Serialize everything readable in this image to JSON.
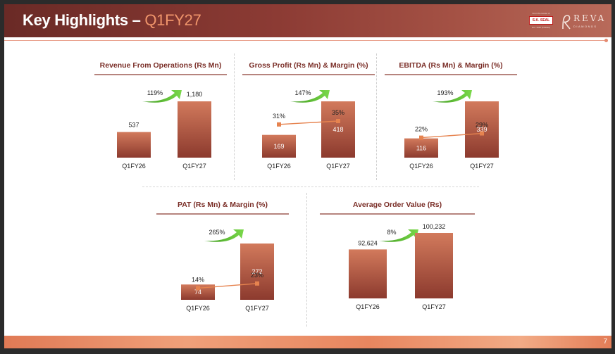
{
  "header": {
    "title_main": "Key Highlights – ",
    "title_accent": "Q1FY27",
    "logo_sk": {
      "top_text": "From the House of",
      "brand": "S.K. SEAL",
      "tagline": "Est. 1940 (Kolkata)"
    },
    "logo_reva": {
      "name": "REVA",
      "sub": "DIAMONDS"
    }
  },
  "footer": {
    "page_number": "7"
  },
  "colors": {
    "bar_top": "#d27a5c",
    "bar_bottom": "#8c3a2e",
    "line": "#e6834f",
    "arrow": "#5cc234",
    "title": "#7a2e27",
    "underline": "#8a3a32"
  },
  "chart_data": [
    {
      "type": "bar",
      "title": "Revenue From Operations (Rs Mn)",
      "categories": [
        "Q1FY26",
        "Q1FY27"
      ],
      "values": [
        537,
        1180
      ],
      "value_labels": [
        "537",
        "1,180"
      ],
      "growth": "119%"
    },
    {
      "type": "bar",
      "title": "Gross Profit (Rs Mn) & Margin (%)",
      "categories": [
        "Q1FY26",
        "Q1FY27"
      ],
      "values": [
        169,
        418
      ],
      "value_labels": [
        "169",
        "418"
      ],
      "growth": "147%",
      "line_values": [
        31,
        35
      ],
      "line_labels": [
        "31%",
        "35%"
      ]
    },
    {
      "type": "bar",
      "title": "EBITDA (Rs Mn) & Margin (%)",
      "categories": [
        "Q1FY26",
        "Q1FY27"
      ],
      "values": [
        116,
        339
      ],
      "value_labels": [
        "116",
        "339"
      ],
      "growth": "193%",
      "line_values": [
        22,
        29
      ],
      "line_labels": [
        "22%",
        "29%"
      ]
    },
    {
      "type": "bar",
      "title": "PAT (Rs Mn) & Margin (%)",
      "categories": [
        "Q1FY26",
        "Q1FY27"
      ],
      "values": [
        74,
        272
      ],
      "value_labels": [
        "74",
        "272"
      ],
      "growth": "265%",
      "line_values": [
        14,
        23
      ],
      "line_labels": [
        "14%",
        "23%"
      ]
    },
    {
      "type": "bar",
      "title": "Average Order Value (Rs)",
      "categories": [
        "Q1FY26",
        "Q1FY27"
      ],
      "values": [
        92624,
        100232
      ],
      "value_labels": [
        "92,624",
        "100,232"
      ],
      "growth": "8%"
    }
  ]
}
